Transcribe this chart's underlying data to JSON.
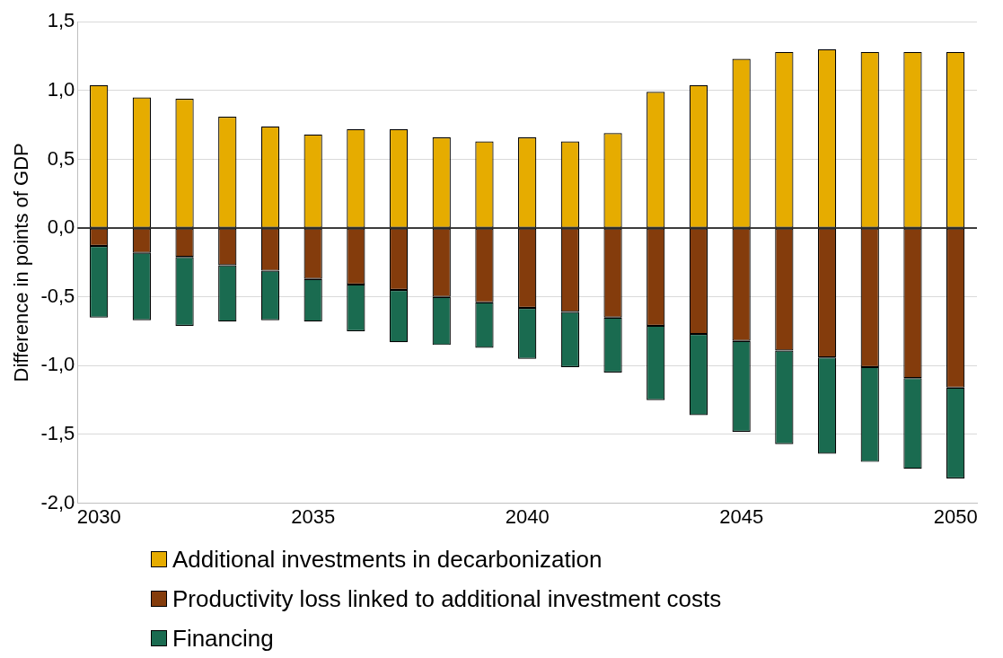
{
  "chart_data": {
    "type": "bar",
    "ylabel": "Difference in points of GDP",
    "categories": [
      "2030",
      null,
      null,
      null,
      null,
      "2035",
      null,
      null,
      null,
      null,
      "2040",
      null,
      null,
      null,
      null,
      "2045",
      null,
      null,
      null,
      null,
      "2050"
    ],
    "series": [
      {
        "name": "Additional investments in decarbonization",
        "color": "#e6ac00",
        "values": [
          1.04,
          0.95,
          0.94,
          0.81,
          0.74,
          0.68,
          0.72,
          0.72,
          0.66,
          0.63,
          0.66,
          0.63,
          0.69,
          0.99,
          1.04,
          1.23,
          1.28,
          1.3,
          1.28,
          1.28,
          1.28
        ]
      },
      {
        "name": "Productivity loss linked to additional investment costs",
        "color": "#843c0c",
        "values": [
          -0.13,
          -0.18,
          -0.21,
          -0.27,
          -0.31,
          -0.37,
          -0.41,
          -0.45,
          -0.5,
          -0.54,
          -0.58,
          -0.61,
          -0.65,
          -0.71,
          -0.77,
          -0.82,
          -0.89,
          -0.94,
          -1.01,
          -1.09,
          -1.16
        ]
      },
      {
        "name": "Financing",
        "color": "#1a6b50",
        "values": [
          -0.52,
          -0.49,
          -0.5,
          -0.41,
          -0.36,
          -0.31,
          -0.34,
          -0.38,
          -0.35,
          -0.33,
          -0.37,
          -0.4,
          -0.4,
          -0.54,
          -0.59,
          -0.66,
          -0.68,
          -0.7,
          -0.69,
          -0.66,
          -0.66
        ]
      }
    ],
    "stacked": true,
    "ylim": [
      -2,
      1.5
    ],
    "yticks": [
      {
        "value": -2,
        "label": "-2,0"
      },
      {
        "value": -1.5,
        "label": "-1,5"
      },
      {
        "value": -1,
        "label": "-1,0"
      },
      {
        "value": -0.5,
        "label": "-0,5"
      },
      {
        "value": 0,
        "label": "0,0"
      },
      {
        "value": 0.5,
        "label": "0,5"
      },
      {
        "value": 1,
        "label": "1,0"
      },
      {
        "value": 1.5,
        "label": "1,5"
      }
    ],
    "grid": "y",
    "legend": "bottom"
  }
}
